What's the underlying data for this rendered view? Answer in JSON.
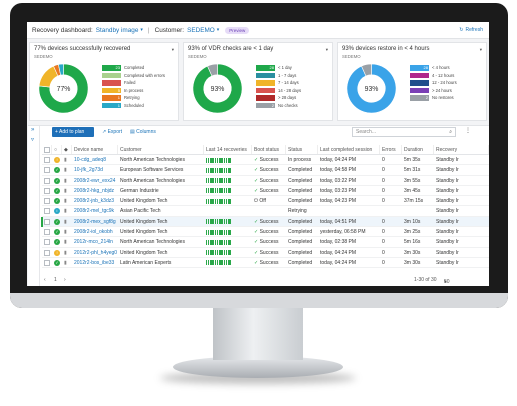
{
  "header": {
    "dash_label": "Recovery dashboard:",
    "dash_value": "Standby image",
    "cust_label": "Customer:",
    "cust_value": "SEDEMO",
    "badge": "Preview",
    "refresh": "Refresh"
  },
  "cards": [
    {
      "title": "77% devices successfully recovered",
      "sub": "SEDEMO",
      "center": "77%",
      "legend": [
        {
          "count": "23",
          "label": "Completed",
          "color": "#1fa84a"
        },
        {
          "count": "",
          "label": "Completed with errors",
          "color": "#a9d18e"
        },
        {
          "count": "",
          "label": "Failed",
          "color": "#d9534f"
        },
        {
          "count": "5",
          "label": "In process",
          "color": "#f0b429"
        },
        {
          "count": "1",
          "label": "Retrying",
          "color": "#e87722"
        },
        {
          "count": "1",
          "label": "Scheduled",
          "color": "#29a8c7"
        }
      ],
      "values": [
        23,
        0,
        0,
        5,
        1,
        1
      ]
    },
    {
      "title": "93% of VDR checks are < 1 day",
      "sub": "SEDEMO",
      "center": "93%",
      "legend": [
        {
          "count": "28",
          "label": "< 1 day",
          "color": "#1fa84a"
        },
        {
          "count": "",
          "label": "1 - 7 days",
          "color": "#2a8fa0"
        },
        {
          "count": "",
          "label": "7 - 14 days",
          "color": "#f0b429"
        },
        {
          "count": "",
          "label": "14 - 28 days",
          "color": "#d9534f"
        },
        {
          "count": "",
          "label": "> 28 days",
          "color": "#b02a2a"
        },
        {
          "count": "2",
          "label": "No checks",
          "color": "#9aa0a6"
        }
      ],
      "values": [
        28,
        0,
        0,
        0,
        0,
        2
      ]
    },
    {
      "title": "93% devices restore in < 4 hours",
      "sub": "SEDEMO",
      "center": "93%",
      "legend": [
        {
          "count": "28",
          "label": "< 4 hours",
          "color": "#3aa3e8"
        },
        {
          "count": "",
          "label": "4 - 12 hours",
          "color": "#b0278c"
        },
        {
          "count": "",
          "label": "12 - 24 hours",
          "color": "#1f4e8c"
        },
        {
          "count": "",
          "label": "> 24 hours",
          "color": "#7a3fb5"
        },
        {
          "count": "2",
          "label": "No restores",
          "color": "#9aa0a6"
        }
      ],
      "values": [
        28,
        0,
        0,
        0,
        2
      ]
    }
  ],
  "toolbar": {
    "add": "+ Add to plan",
    "export": "Export",
    "columns": "Columns",
    "search_placeholder": "Search..."
  },
  "columns": [
    "",
    "",
    "",
    "Device name",
    "Customer",
    "Last 14 recoveries",
    "Boot status",
    "Status",
    "Last completed session",
    "Errors",
    "Duration",
    "Recovery"
  ],
  "rows": [
    {
      "icon": "warn",
      "name": "10-cdg_adeq8",
      "customer": "North American Technologies",
      "bars": "gggggggggggggg",
      "boot": "Success",
      "boot_ok": true,
      "status": "In process",
      "last": "today, 04:24 PM",
      "errors": "0",
      "duration": "5m 35s",
      "recovery": "Standby Ir",
      "strip": false
    },
    {
      "icon": "ok",
      "name": "10-jfk_2g73d",
      "customer": "European Software Services",
      "bars": "gggggggggggggg",
      "boot": "Success",
      "boot_ok": true,
      "status": "Completed",
      "last": "today, 04:58 PM",
      "errors": "0",
      "duration": "5m 31s",
      "recovery": "Standby Ir",
      "strip": false
    },
    {
      "icon": "ok",
      "name": "2008r2-ewr_exx24",
      "customer": "North American Technologies",
      "bars": "gggggggggggggg",
      "boot": "Success",
      "boot_ok": true,
      "status": "Completed",
      "last": "today, 03:22 PM",
      "errors": "0",
      "duration": "3m 55s",
      "recovery": "Standby Ir",
      "strip": false
    },
    {
      "icon": "ok",
      "name": "2008r2-hkg_nbjdz",
      "customer": "German Industrie",
      "bars": "gggggggggggggg",
      "boot": "Success",
      "boot_ok": true,
      "status": "Completed",
      "last": "today, 03:23 PM",
      "errors": "0",
      "duration": "3m 45s",
      "recovery": "Standby Ir",
      "strip": false
    },
    {
      "icon": "ok",
      "name": "2008r2-jnb_k3dz3",
      "customer": "United Kingdom Tech",
      "bars": "gggggggggggggg",
      "boot": "Off",
      "boot_ok": false,
      "status": "Completed",
      "last": "today, 04:23 PM",
      "errors": "0",
      "duration": "37m 15s",
      "recovery": "Standby Ir",
      "strip": false
    },
    {
      "icon": "info",
      "name": "2008r2-mel_tgc9k",
      "customer": "Asian Pacific Tech",
      "bars": "",
      "boot": "",
      "boot_ok": true,
      "status": "Retrying",
      "last": "",
      "errors": "",
      "duration": "",
      "recovery": "Standby Ir",
      "strip": false
    },
    {
      "icon": "ok",
      "name": "2008r2-mex_sgf8g",
      "customer": "United Kingdom Tech",
      "bars": "gggggggggggggg",
      "boot": "Success",
      "boot_ok": true,
      "status": "Completed",
      "last": "today, 04:51 PM",
      "errors": "0",
      "duration": "3m 10s",
      "recovery": "Standby Ir",
      "strip": true
    },
    {
      "icon": "ok",
      "name": "2008r2-iol_okobh",
      "customer": "United Kingdom Tech",
      "bars": "gggggggggggggg",
      "boot": "Success",
      "boot_ok": true,
      "status": "Completed",
      "last": "yesterday, 06:58 PM",
      "errors": "0",
      "duration": "3m 25s",
      "recovery": "Standby Ir",
      "strip": false
    },
    {
      "icon": "ok",
      "name": "2012r-mco_214ln",
      "customer": "North American Technologies",
      "bars": "gggggggggggggg",
      "boot": "Success",
      "boot_ok": true,
      "status": "Completed",
      "last": "today, 02:38 PM",
      "errors": "0",
      "duration": "5m 16s",
      "recovery": "Standby Ir",
      "strip": false
    },
    {
      "icon": "warn",
      "name": "2012r2-phl_h4yeg0",
      "customer": "United Kingdom Tech",
      "bars": "gggggggggggggg",
      "boot": "Success",
      "boot_ok": true,
      "status": "Completed",
      "last": "today, 04:24 PM",
      "errors": "0",
      "duration": "3m 30s",
      "recovery": "Standby Ir",
      "strip": false
    },
    {
      "icon": "ok",
      "name": "2012r2-bos_ibe33",
      "customer": "Latin American Experts",
      "bars": "gggggggggggggg",
      "boot": "Success",
      "boot_ok": true,
      "status": "Completed",
      "last": "today, 04:24 PM",
      "errors": "0",
      "duration": "3m 30s",
      "recovery": "Standby Ir",
      "strip": false
    }
  ],
  "footer": {
    "page": "1",
    "range": "1-30 of 30",
    "per_page": "50"
  }
}
